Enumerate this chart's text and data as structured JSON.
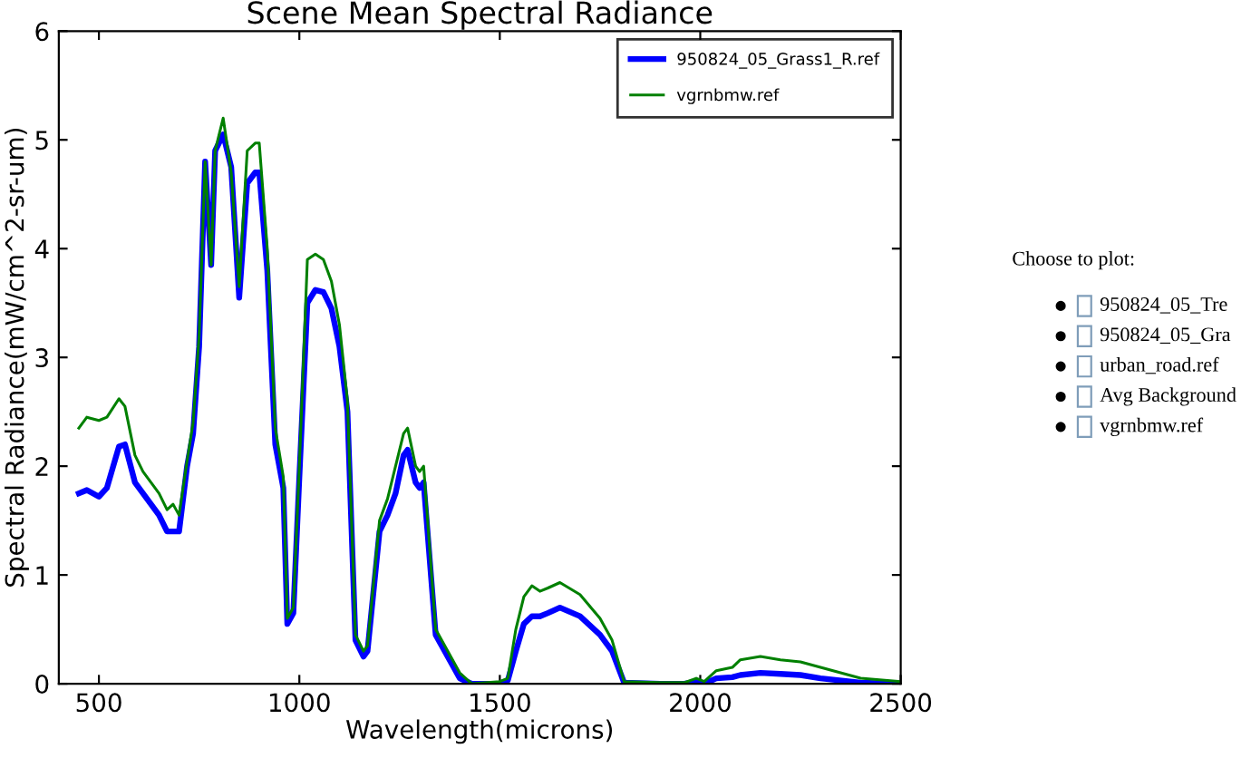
{
  "chart_data": [
    {
      "type": "line",
      "title": "Scene Mean Spectral Radiance",
      "xlabel": "Wavelength(microns)",
      "ylabel": "Spectral Radiance(mW/cm^2-sr-um)",
      "xlim": [
        400,
        2500
      ],
      "ylim": [
        0,
        6
      ],
      "xticks": [
        500,
        1000,
        1500,
        2000,
        2500
      ],
      "yticks": [
        0,
        1,
        2,
        3,
        4,
        5,
        6
      ],
      "grid": false,
      "legend": "top right",
      "marker": "none",
      "line_style": "solid",
      "x": [
        450,
        470,
        500,
        520,
        550,
        565,
        590,
        610,
        650,
        670,
        685,
        700,
        720,
        735,
        750,
        765,
        780,
        790,
        810,
        830,
        850,
        870,
        890,
        900,
        920,
        940,
        960,
        970,
        985,
        1000,
        1020,
        1040,
        1060,
        1080,
        1100,
        1120,
        1140,
        1160,
        1170,
        1200,
        1220,
        1240,
        1260,
        1270,
        1290,
        1300,
        1310,
        1340,
        1400,
        1430,
        1500,
        1520,
        1540,
        1560,
        1580,
        1600,
        1620,
        1650,
        1700,
        1750,
        1780,
        1810,
        1900,
        1960,
        1990,
        2010,
        2040,
        2080,
        2100,
        2150,
        2200,
        2250,
        2300,
        2400,
        2500
      ],
      "series": [
        {
          "name": "950824_05_Grass1_R.ref",
          "color": "#0000ff",
          "values": [
            1.75,
            1.78,
            1.72,
            1.8,
            2.18,
            2.2,
            1.85,
            1.75,
            1.55,
            1.4,
            1.4,
            1.4,
            2.0,
            2.3,
            3.1,
            4.8,
            3.85,
            4.9,
            5.05,
            4.75,
            3.55,
            4.6,
            4.7,
            4.7,
            3.8,
            2.2,
            1.8,
            0.55,
            0.65,
            1.9,
            3.5,
            3.62,
            3.6,
            3.45,
            3.1,
            2.5,
            0.4,
            0.25,
            0.3,
            1.4,
            1.55,
            1.75,
            2.1,
            2.15,
            1.85,
            1.8,
            1.85,
            0.45,
            0.05,
            0.0,
            0.0,
            0.03,
            0.3,
            0.55,
            0.62,
            0.62,
            0.65,
            0.7,
            0.62,
            0.45,
            0.3,
            0.01,
            0.0,
            0.0,
            0.02,
            0.0,
            0.05,
            0.06,
            0.08,
            0.1,
            0.09,
            0.08,
            0.05,
            0.01,
            0.0
          ]
        },
        {
          "name": "vgrnbmw.ref",
          "color": "#008000",
          "values": [
            2.35,
            2.45,
            2.42,
            2.45,
            2.62,
            2.55,
            2.1,
            1.95,
            1.75,
            1.6,
            1.65,
            1.55,
            2.05,
            2.4,
            3.2,
            4.8,
            3.85,
            4.9,
            5.2,
            4.7,
            3.65,
            4.9,
            4.97,
            4.97,
            4.0,
            2.35,
            1.9,
            0.6,
            0.7,
            2.0,
            3.9,
            3.95,
            3.9,
            3.7,
            3.3,
            2.6,
            0.45,
            0.3,
            0.35,
            1.5,
            1.7,
            2.0,
            2.3,
            2.35,
            2.0,
            1.95,
            2.0,
            0.5,
            0.1,
            0.0,
            0.02,
            0.05,
            0.5,
            0.8,
            0.9,
            0.85,
            0.88,
            0.93,
            0.82,
            0.6,
            0.4,
            0.02,
            0.01,
            0.01,
            0.05,
            0.02,
            0.12,
            0.15,
            0.22,
            0.25,
            0.22,
            0.2,
            0.15,
            0.05,
            0.02
          ]
        }
      ]
    },
    {
      "type": "other",
      "title": "Choose to plot:",
      "annotations": [
        "950824_05_Tre",
        "950824_05_Gra",
        "urban_road.ref",
        "Avg Background",
        "vgrnbmw.ref"
      ]
    }
  ]
}
